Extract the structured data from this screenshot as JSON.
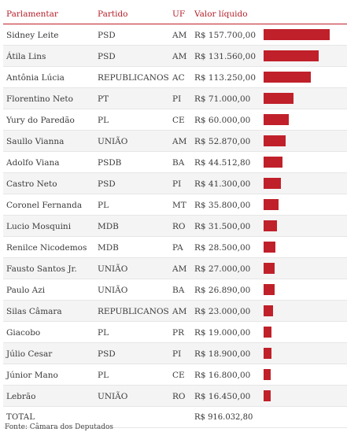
{
  "headers": {
    "name": "Parlamentar",
    "party": "Partido",
    "uf": "UF",
    "value": "Valor líquido"
  },
  "accent_color": "#c0202a",
  "rows": [
    {
      "name": "Sidney Leite",
      "party": "PSD",
      "uf": "AM",
      "value_text": "R$ 157.700,00",
      "value": 157700
    },
    {
      "name": "Átila Lins",
      "party": "PSD",
      "uf": "AM",
      "value_text": "R$ 131.560,00",
      "value": 131560
    },
    {
      "name": "Antônia Lúcia",
      "party": "REPUBLICANOS",
      "uf": "AC",
      "value_text": "R$ 113.250,00",
      "value": 113250
    },
    {
      "name": "Florentino Neto",
      "party": "PT",
      "uf": "PI",
      "value_text": "R$ 71.000,00",
      "value": 71000
    },
    {
      "name": "Yury do Paredão",
      "party": "PL",
      "uf": "CE",
      "value_text": "R$ 60.000,00",
      "value": 60000
    },
    {
      "name": "Saullo Vianna",
      "party": "UNIÃO",
      "uf": "AM",
      "value_text": "R$ 52.870,00",
      "value": 52870
    },
    {
      "name": "Adolfo Viana",
      "party": "PSDB",
      "uf": "BA",
      "value_text": "R$ 44.512,80",
      "value": 44512.8
    },
    {
      "name": "Castro Neto",
      "party": "PSD",
      "uf": "PI",
      "value_text": "R$ 41.300,00",
      "value": 41300
    },
    {
      "name": "Coronel Fernanda",
      "party": "PL",
      "uf": "MT",
      "value_text": "R$ 35.800,00",
      "value": 35800
    },
    {
      "name": "Lucio Mosquini",
      "party": "MDB",
      "uf": "RO",
      "value_text": "R$ 31.500,00",
      "value": 31500
    },
    {
      "name": "Renilce Nicodemos",
      "party": "MDB",
      "uf": "PA",
      "value_text": "R$ 28.500,00",
      "value": 28500
    },
    {
      "name": "Fausto Santos Jr.",
      "party": "UNIÃO",
      "uf": "AM",
      "value_text": "R$ 27.000,00",
      "value": 27000
    },
    {
      "name": "Paulo Azi",
      "party": "UNIÃO",
      "uf": "BA",
      "value_text": "R$ 26.890,00",
      "value": 26890
    },
    {
      "name": "Silas Câmara",
      "party": "REPUBLICANOS",
      "uf": "AM",
      "value_text": "R$ 23.000,00",
      "value": 23000
    },
    {
      "name": "Giacobo",
      "party": "PL",
      "uf": "PR",
      "value_text": "R$ 19.000,00",
      "value": 19000
    },
    {
      "name": "Júlio Cesar",
      "party": "PSD",
      "uf": "PI",
      "value_text": "R$ 18.900,00",
      "value": 18900
    },
    {
      "name": "Júnior Mano",
      "party": "PL",
      "uf": "CE",
      "value_text": "R$ 16.800,00",
      "value": 16800
    },
    {
      "name": "Lebrão",
      "party": "UNIÃO",
      "uf": "RO",
      "value_text": "R$ 16.450,00",
      "value": 16450
    }
  ],
  "total": {
    "label": "TOTAL",
    "value": "R$ 916.032,80"
  },
  "source": "Fonte: Câmara dos Deputados"
}
